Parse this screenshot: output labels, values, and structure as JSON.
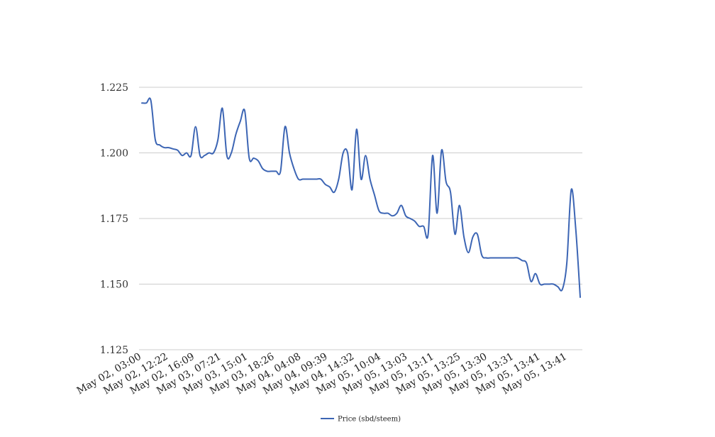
{
  "chart_data": {
    "type": "line",
    "title": "",
    "xlabel": "",
    "ylabel": "",
    "ylim": [
      1.125,
      1.225
    ],
    "yticks": [
      "1.225",
      "1.200",
      "1.175",
      "1.150",
      "1.125"
    ],
    "ytick_values": [
      1.225,
      1.2,
      1.175,
      1.15,
      1.125
    ],
    "xtick_labels": [
      "May 02, 03:00",
      "May 02, 12:22",
      "May 02, 16:09",
      "May 03, 07:21",
      "May 03, 15:01",
      "May 03, 18:26",
      "May 04, 04:08",
      "May 04, 09:39",
      "May 04, 14:32",
      "May 05, 10:04",
      "May 05, 13:03",
      "May 05, 13:11",
      "May 05, 13:25",
      "May 05, 13:30",
      "May 05, 13:31",
      "May 05, 13:41",
      "May 05, 13:41"
    ],
    "grid": true,
    "legend_position": "bottom-center",
    "series": [
      {
        "name": "Price (sbd/steem)",
        "color": "#3c65b4",
        "values": [
          1.219,
          1.219,
          1.22,
          1.205,
          1.203,
          1.202,
          1.202,
          1.2015,
          1.201,
          1.199,
          1.2,
          1.199,
          1.21,
          1.199,
          1.199,
          1.2,
          1.2,
          1.205,
          1.217,
          1.199,
          1.2,
          1.207,
          1.212,
          1.216,
          1.198,
          1.198,
          1.197,
          1.194,
          1.193,
          1.193,
          1.193,
          1.193,
          1.21,
          1.2,
          1.194,
          1.19,
          1.19,
          1.19,
          1.19,
          1.19,
          1.19,
          1.188,
          1.187,
          1.185,
          1.19,
          1.2,
          1.2,
          1.186,
          1.209,
          1.19,
          1.199,
          1.19,
          1.184,
          1.178,
          1.177,
          1.177,
          1.176,
          1.177,
          1.18,
          1.176,
          1.175,
          1.174,
          1.172,
          1.172,
          1.169,
          1.199,
          1.177,
          1.201,
          1.189,
          1.185,
          1.169,
          1.18,
          1.168,
          1.162,
          1.168,
          1.169,
          1.161,
          1.16,
          1.16,
          1.16,
          1.16,
          1.16,
          1.16,
          1.16,
          1.16,
          1.159,
          1.158,
          1.151,
          1.154,
          1.15,
          1.15,
          1.15,
          1.15,
          1.149,
          1.148,
          1.158,
          1.186,
          1.171,
          1.145
        ]
      }
    ]
  }
}
